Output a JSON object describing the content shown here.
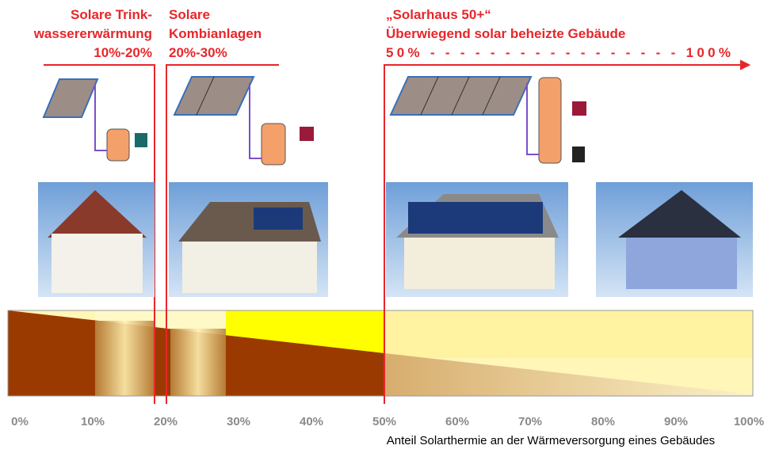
{
  "segments": [
    {
      "lines": [
        "Solare Trink-",
        "wassererwärmung",
        "10%-20%"
      ]
    },
    {
      "lines": [
        "Solare",
        "Kombianlagen",
        "20%-30%"
      ]
    },
    {
      "lines": [
        "„Solarhaus 50+“",
        "Überwiegend solar beheizte Gebäude",
        "50% - - - - - - - - - - - - - - - - - 100%"
      ]
    }
  ],
  "axis": {
    "ticks": [
      "0%",
      "10%",
      "20%",
      "30%",
      "40%",
      "50%",
      "60%",
      "70%",
      "80%",
      "90%",
      "100%"
    ],
    "title": "Anteil Solarthermie an der Wärmeversorgung eines Gebäudes"
  }
}
